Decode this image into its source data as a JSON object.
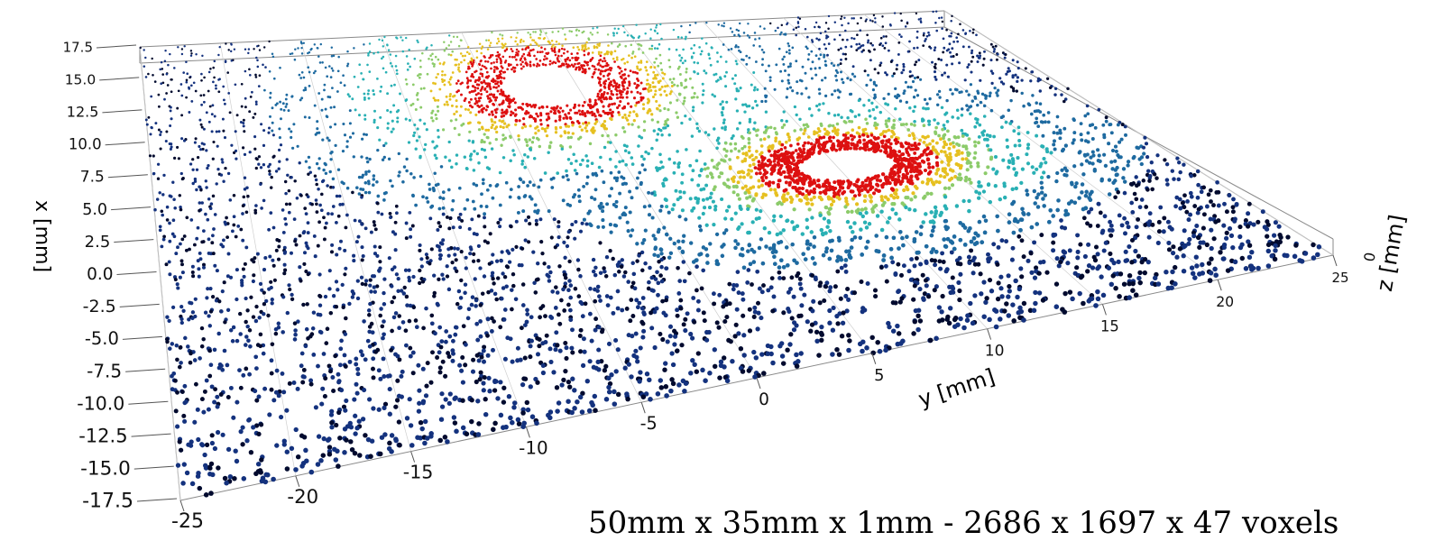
{
  "caption": "50mm x 35mm x 1mm - 2686 x 1697 x 47 voxels",
  "chart_data": {
    "type": "scatter",
    "projection": "3d",
    "x_axis": {
      "label": "x [mm]",
      "range": [
        -17.5,
        17.5
      ],
      "ticks": [
        "17.5",
        "15.0",
        "12.5",
        "10.0",
        "7.5",
        "5.0",
        "2.5",
        "0.0",
        "-2.5",
        "-5.0",
        "-7.5",
        "-10.0",
        "-12.5",
        "-15.0",
        "-17.5"
      ]
    },
    "y_axis": {
      "label": "y [mm]",
      "range": [
        -25,
        25
      ],
      "ticks": [
        "-25",
        "-20",
        "-15",
        "-10",
        "-5",
        "0",
        "5",
        "10",
        "15",
        "20",
        "25"
      ]
    },
    "z_axis": {
      "label": "z [mm]",
      "ticks": [
        "0"
      ]
    },
    "colormap": [
      "#000a2e",
      "#14327e",
      "#1e6aa0",
      "#29b0b4",
      "#8ccb6a",
      "#e6c020",
      "#dd1010"
    ],
    "clusters": [
      {
        "center_x": 12.0,
        "center_y": -1.5,
        "radius": 3.5
      },
      {
        "center_x": 1.0,
        "center_y": 10.5,
        "radius": 3.0
      }
    ],
    "grid": true
  }
}
